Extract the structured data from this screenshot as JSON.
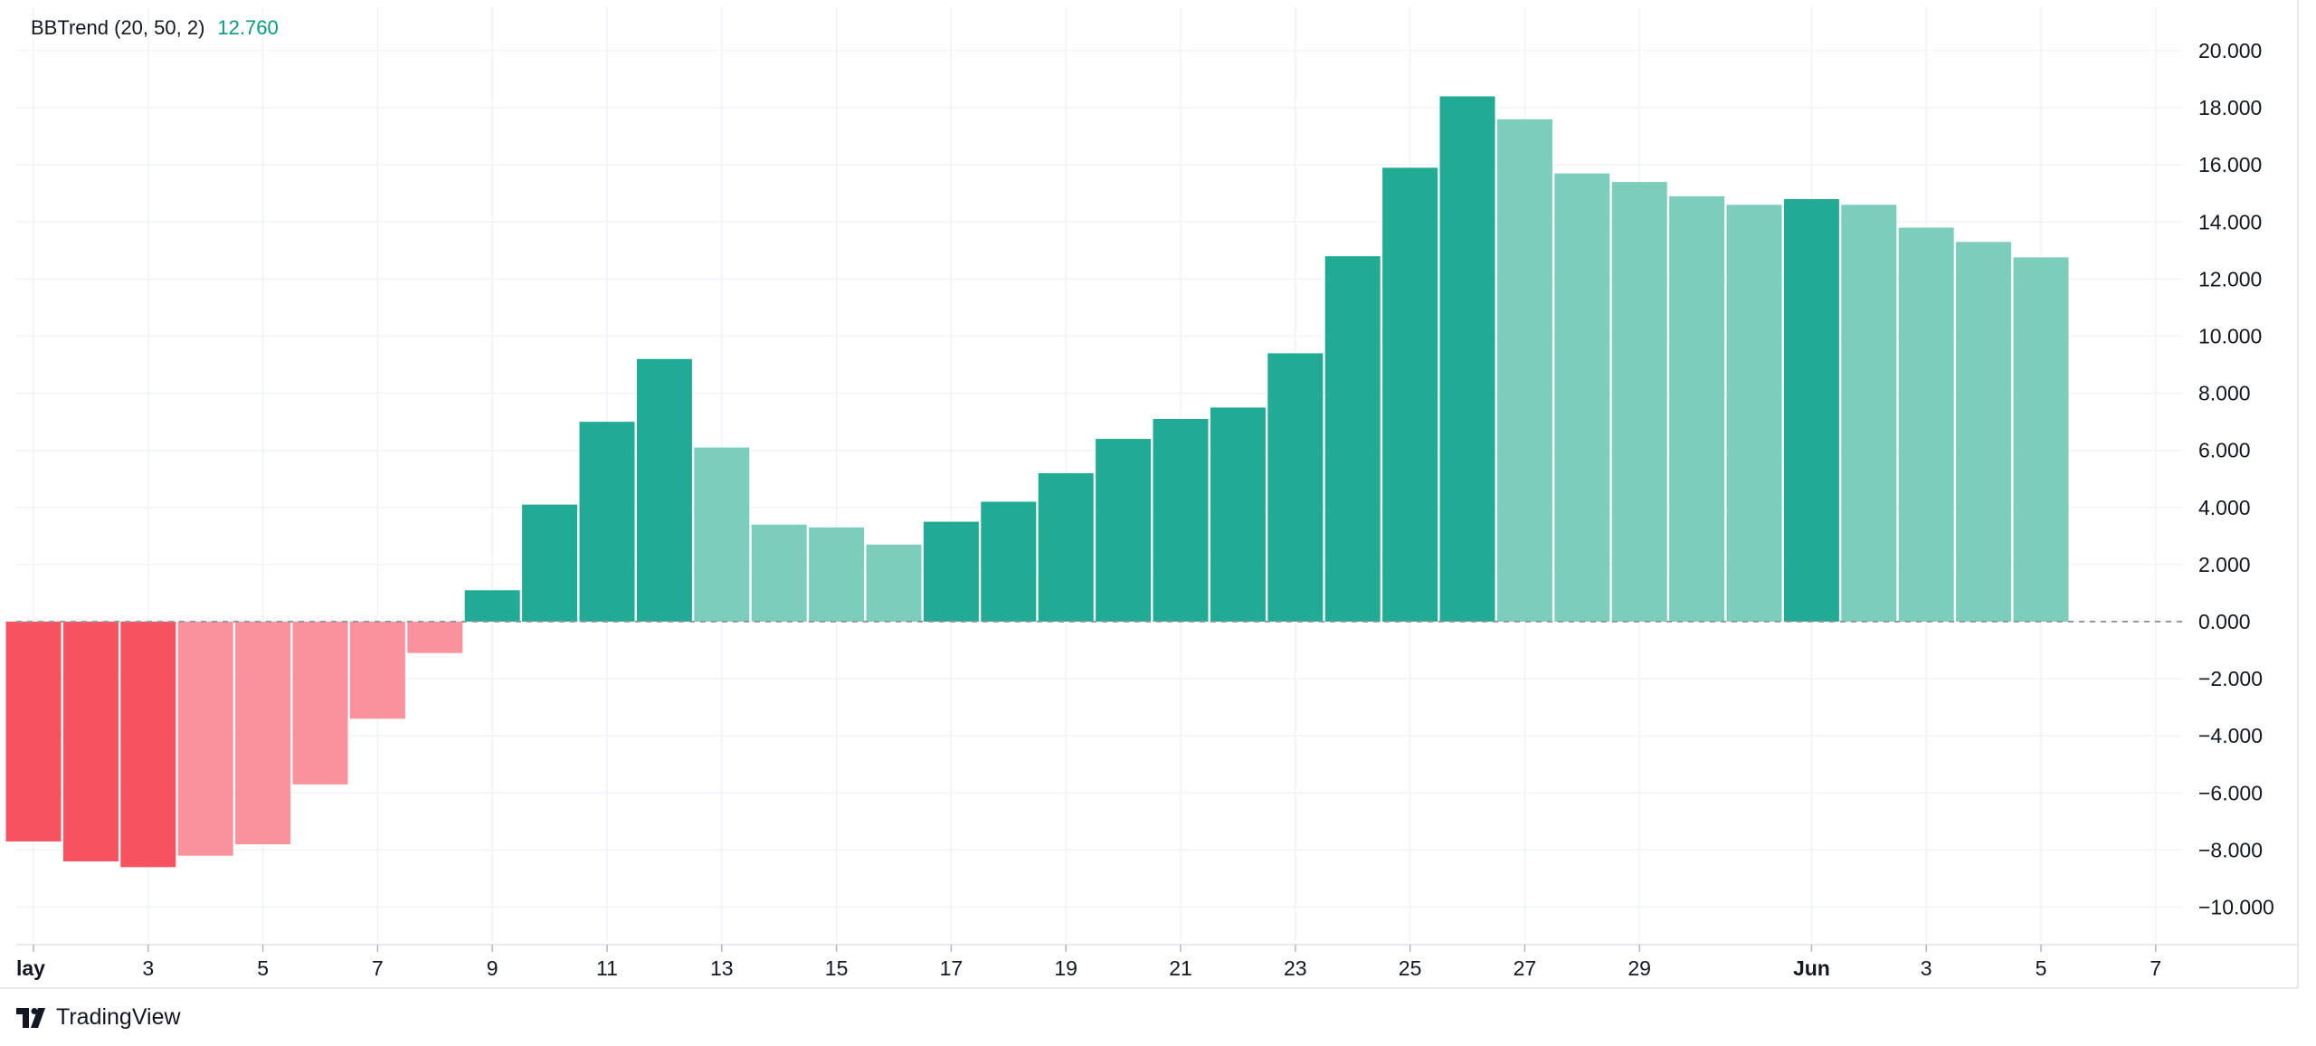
{
  "legend": {
    "label": "BBTrend (20, 50, 2)",
    "value": "12.760"
  },
  "brand": {
    "name": "TradingView",
    "icon": "tradingview-logo-icon"
  },
  "colors": {
    "strong_up": "#22ab94",
    "weak_up": "#7ccdbc",
    "strong_down": "#f7525f",
    "weak_down": "#f9929a",
    "zero_line": "#9598a1",
    "grid": "#f0f3fa",
    "legend_value": "#089981"
  },
  "chart_data": {
    "type": "bar",
    "title": "",
    "x_dates": [
      "May 1",
      "May 2",
      "May 3",
      "May 4",
      "May 5",
      "May 6",
      "May 7",
      "May 8",
      "May 9",
      "May 10",
      "May 11",
      "May 12",
      "May 13",
      "May 14",
      "May 15",
      "May 16",
      "May 17",
      "May 18",
      "May 19",
      "May 20",
      "May 21",
      "May 22",
      "May 23",
      "May 24",
      "May 25",
      "May 26",
      "May 27",
      "May 28",
      "May 29",
      "May 30",
      "May 31",
      "Jun 1",
      "Jun 2",
      "Jun 3",
      "Jun 4",
      "Jun 5"
    ],
    "values": [
      -7.7,
      -8.4,
      -8.6,
      -8.2,
      -7.8,
      -5.7,
      -3.4,
      -1.1,
      1.1,
      4.1,
      7.0,
      9.2,
      6.1,
      3.4,
      3.3,
      2.7,
      3.5,
      4.2,
      5.2,
      6.4,
      7.1,
      7.5,
      9.4,
      12.8,
      15.9,
      18.4,
      17.6,
      15.7,
      15.4,
      14.9,
      14.6,
      14.8,
      14.6,
      13.8,
      13.3,
      12.76
    ],
    "colors": [
      "strong_down",
      "strong_down",
      "strong_down",
      "weak_down",
      "weak_down",
      "weak_down",
      "weak_down",
      "weak_down",
      "strong_up",
      "strong_up",
      "strong_up",
      "strong_up",
      "weak_up",
      "weak_up",
      "weak_up",
      "weak_up",
      "strong_up",
      "strong_up",
      "strong_up",
      "strong_up",
      "strong_up",
      "strong_up",
      "strong_up",
      "strong_up",
      "strong_up",
      "strong_up",
      "weak_up",
      "weak_up",
      "weak_up",
      "weak_up",
      "weak_up",
      "strong_up",
      "weak_up",
      "weak_up",
      "weak_up",
      "weak_up"
    ],
    "ylim": [
      -10.6,
      21
    ],
    "y_ticks": [
      "20.000",
      "18.000",
      "16.000",
      "14.000",
      "12.000",
      "10.000",
      "8.000",
      "6.000",
      "4.000",
      "2.000",
      "0.000",
      "−2.000",
      "−4.000",
      "−6.000",
      "−8.000",
      "−10.000"
    ],
    "x_tick_labels": [
      {
        "date_index": 0,
        "label": "lay",
        "bold": true
      },
      {
        "date_index": 2,
        "label": "3",
        "bold": false
      },
      {
        "date_index": 4,
        "label": "5",
        "bold": false
      },
      {
        "date_index": 6,
        "label": "7",
        "bold": false
      },
      {
        "date_index": 8,
        "label": "9",
        "bold": false
      },
      {
        "date_index": 10,
        "label": "11",
        "bold": false
      },
      {
        "date_index": 12,
        "label": "13",
        "bold": false
      },
      {
        "date_index": 14,
        "label": "15",
        "bold": false
      },
      {
        "date_index": 16,
        "label": "17",
        "bold": false
      },
      {
        "date_index": 18,
        "label": "19",
        "bold": false
      },
      {
        "date_index": 20,
        "label": "21",
        "bold": false
      },
      {
        "date_index": 22,
        "label": "23",
        "bold": false
      },
      {
        "date_index": 24,
        "label": "25",
        "bold": false
      },
      {
        "date_index": 26,
        "label": "27",
        "bold": false
      },
      {
        "date_index": 28,
        "label": "29",
        "bold": false
      },
      {
        "date_index": 31,
        "label": "Jun",
        "bold": true
      },
      {
        "date_index": 33,
        "label": "3",
        "bold": false
      },
      {
        "date_index": 35,
        "label": "5",
        "bold": false
      },
      {
        "date_index": 37,
        "label": "7",
        "bold": false
      }
    ],
    "grid": true,
    "zero_line": "dashed"
  }
}
